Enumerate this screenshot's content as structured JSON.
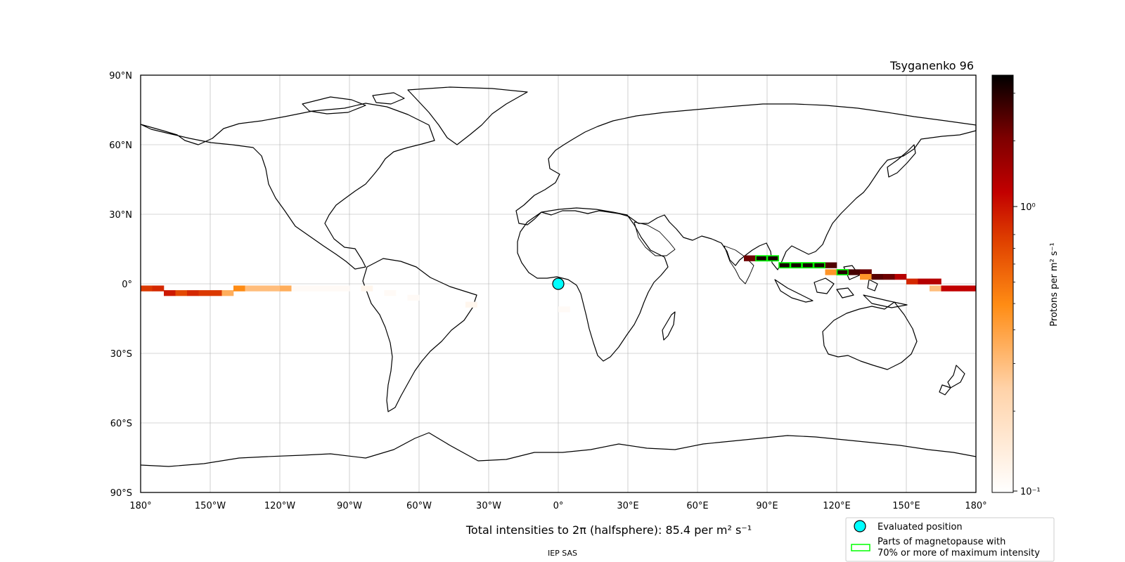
{
  "title": "Tsyganenko 96",
  "x_ticks": [
    "180°",
    "150°W",
    "120°W",
    "90°W",
    "60°W",
    "30°W",
    "0°",
    "30°E",
    "60°E",
    "90°E",
    "120°E",
    "150°E",
    "180°"
  ],
  "y_ticks": [
    "90°N",
    "60°N",
    "30°N",
    "0°",
    "30°S",
    "60°S",
    "90°S"
  ],
  "colorbar": {
    "label": "Protons per m² s⁻¹",
    "scale": "log",
    "tick_major_label": "10⁰",
    "tick_min_label": "10⁻¹",
    "colormap": "gist_heat_r",
    "min": 0.1,
    "max": 3.5
  },
  "caption": "Total intensities to 2π (halfsphere): 85.4 per m² s⁻¹",
  "footer": "IEP SAS",
  "legend": {
    "evaluated_position": "Evaluated position",
    "magnetopause_line1": "Parts of magnetopause with",
    "magnetopause_line2": "70% or more of maximum intensity"
  },
  "colors": {
    "marker": "#00ffff",
    "highlight": "#00ff00",
    "grid": "#b0b0b0"
  },
  "evaluated_position": {
    "lon": 0,
    "lat": 0
  },
  "chart_data": {
    "type": "heatmap",
    "title": "Tsyganenko 96",
    "x_range": [
      -180,
      180
    ],
    "y_range": [
      -90,
      90
    ],
    "grid": true,
    "cells": [
      {
        "lon": -180,
        "lat": -2,
        "v": 0.9
      },
      {
        "lon": -175,
        "lat": -2,
        "v": 1.0
      },
      {
        "lon": -170,
        "lat": -4,
        "v": 1.1
      },
      {
        "lon": -165,
        "lat": -4,
        "v": 0.8
      },
      {
        "lon": -160,
        "lat": -4,
        "v": 1.0
      },
      {
        "lon": -155,
        "lat": -4,
        "v": 0.9
      },
      {
        "lon": -150,
        "lat": -4,
        "v": 0.9
      },
      {
        "lon": -145,
        "lat": -4,
        "v": 0.35
      },
      {
        "lon": -140,
        "lat": -2,
        "v": 0.5
      },
      {
        "lon": -135,
        "lat": -2,
        "v": 0.3
      },
      {
        "lon": -130,
        "lat": -2,
        "v": 0.3
      },
      {
        "lon": -125,
        "lat": -2,
        "v": 0.3
      },
      {
        "lon": -120,
        "lat": -2,
        "v": 0.35
      },
      {
        "lon": -115,
        "lat": -2,
        "v": 0.11
      },
      {
        "lon": -110,
        "lat": -2,
        "v": 0.11
      },
      {
        "lon": -105,
        "lat": -2,
        "v": 0.11
      },
      {
        "lon": -100,
        "lat": -2,
        "v": 0.11
      },
      {
        "lon": -95,
        "lat": -2,
        "v": 0.11
      },
      {
        "lon": -85,
        "lat": -2,
        "v": 0.12
      },
      {
        "lon": -75,
        "lat": -4,
        "v": 0.11
      },
      {
        "lon": -65,
        "lat": -6,
        "v": 0.11
      },
      {
        "lon": -40,
        "lat": -9,
        "v": 0.12
      },
      {
        "lon": 0,
        "lat": -11,
        "v": 0.11
      },
      {
        "lon": 80,
        "lat": 11,
        "v": 2.2
      },
      {
        "lon": 85,
        "lat": 11,
        "v": 3.2
      },
      {
        "lon": 90,
        "lat": 11,
        "v": 3.2
      },
      {
        "lon": 95,
        "lat": 8,
        "v": 3.2
      },
      {
        "lon": 100,
        "lat": 8,
        "v": 3.2
      },
      {
        "lon": 105,
        "lat": 8,
        "v": 3.2
      },
      {
        "lon": 110,
        "lat": 8,
        "v": 3.2
      },
      {
        "lon": 115,
        "lat": 8,
        "v": 2.5
      },
      {
        "lon": 115,
        "lat": 5,
        "v": 0.45
      },
      {
        "lon": 120,
        "lat": 5,
        "v": 3.0
      },
      {
        "lon": 125,
        "lat": 5,
        "v": 2.6
      },
      {
        "lon": 130,
        "lat": 5,
        "v": 2.2
      },
      {
        "lon": 130,
        "lat": 3,
        "v": 0.45
      },
      {
        "lon": 135,
        "lat": 3,
        "v": 2.4
      },
      {
        "lon": 140,
        "lat": 3,
        "v": 2.2
      },
      {
        "lon": 145,
        "lat": 3,
        "v": 1.4
      },
      {
        "lon": 150,
        "lat": 1,
        "v": 1.0
      },
      {
        "lon": 155,
        "lat": 1,
        "v": 1.4
      },
      {
        "lon": 160,
        "lat": 1,
        "v": 1.4
      },
      {
        "lon": 160,
        "lat": -2,
        "v": 0.3
      },
      {
        "lon": 165,
        "lat": -2,
        "v": 1.3
      },
      {
        "lon": 170,
        "lat": -2,
        "v": 1.3
      },
      {
        "lon": 175,
        "lat": -2,
        "v": 1.3
      }
    ],
    "magnetopause_70pct": [
      {
        "lon": 85,
        "lat": 11
      },
      {
        "lon": 90,
        "lat": 11
      },
      {
        "lon": 95,
        "lat": 8
      },
      {
        "lon": 100,
        "lat": 8
      },
      {
        "lon": 105,
        "lat": 8
      },
      {
        "lon": 110,
        "lat": 8
      },
      {
        "lon": 120,
        "lat": 5
      }
    ]
  }
}
